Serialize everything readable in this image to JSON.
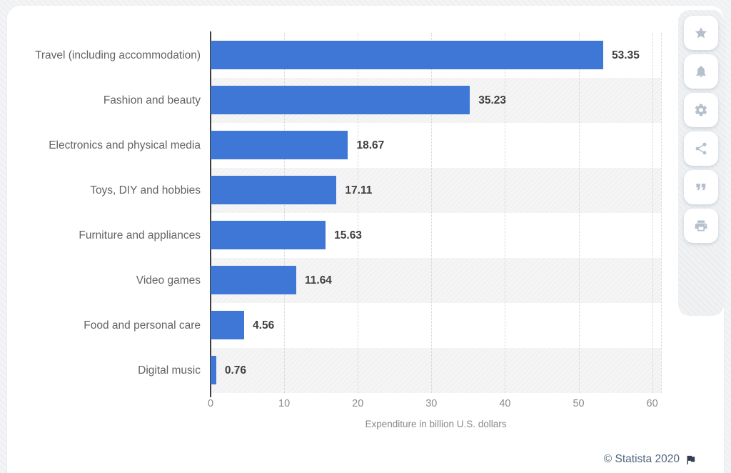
{
  "chart_data": {
    "type": "bar",
    "orientation": "horizontal",
    "categories": [
      "Travel (including accommodation)",
      "Fashion and beauty",
      "Electronics and physical media",
      "Toys, DIY and hobbies",
      "Furniture and appliances",
      "Video games",
      "Food and personal care",
      "Digital music"
    ],
    "values": [
      53.35,
      35.23,
      18.67,
      17.11,
      15.63,
      11.64,
      4.56,
      0.76
    ],
    "value_labels": [
      "53.35",
      "35.23",
      "18.67",
      "17.11",
      "15.63",
      "11.64",
      "4.56",
      "0.76"
    ],
    "xlabel": "Expenditure in billion U.S. dollars",
    "xticks": [
      0,
      10,
      20,
      30,
      40,
      50,
      60
    ],
    "xlim": [
      0,
      61.2
    ],
    "grid": "vertical-dotted",
    "legend": "none",
    "bar_color": "#3e77d5",
    "band_alt_color": "#f5f5f6"
  },
  "toolbar": {
    "items": [
      {
        "name": "favorite",
        "icon": "star-icon"
      },
      {
        "name": "alerts",
        "icon": "bell-icon"
      },
      {
        "name": "settings",
        "icon": "gear-icon"
      },
      {
        "name": "share",
        "icon": "share-icon"
      },
      {
        "name": "cite",
        "icon": "quote-icon"
      },
      {
        "name": "print",
        "icon": "printer-icon"
      }
    ]
  },
  "footer": {
    "copyright": "© Statista 2020",
    "flag_icon": "flag-icon"
  }
}
